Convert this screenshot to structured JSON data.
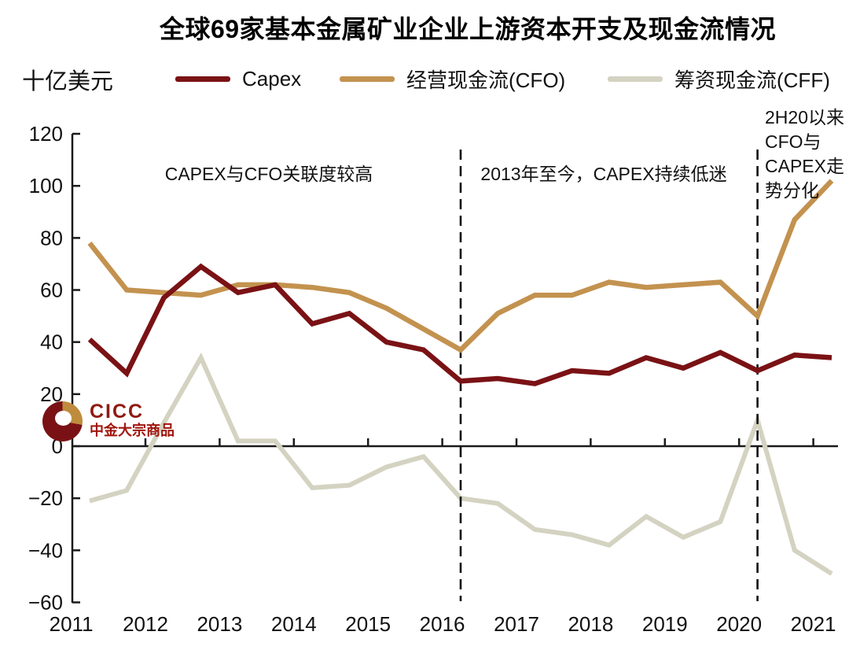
{
  "logo": {
    "name": "CICC",
    "subtitle": "中金大宗商品"
  },
  "chart_data": {
    "type": "line",
    "title": "全球69家基本金属矿业企业上游资本开支及现金流情况",
    "ylabel": "十亿美元",
    "xlabel": "",
    "x_unit": "half-year",
    "categories": [
      "2011H1",
      "2011H2",
      "2012H1",
      "2012H2",
      "2013H1",
      "2013H2",
      "2014H1",
      "2014H2",
      "2015H1",
      "2015H2",
      "2016H1",
      "2016H2",
      "2017H1",
      "2017H2",
      "2018H1",
      "2018H2",
      "2019H1",
      "2019H2",
      "2020H1",
      "2020H2",
      "2021H1"
    ],
    "series": [
      {
        "name": "Capex",
        "color": "#7a1215",
        "values": [
          41,
          28,
          57,
          69,
          59,
          62,
          47,
          51,
          40,
          37,
          25,
          26,
          24,
          29,
          28,
          34,
          30,
          36,
          29,
          35,
          34
        ]
      },
      {
        "name": "经营现金流(CFO)",
        "color": "#c3924f",
        "values": [
          78,
          60,
          59,
          58,
          62,
          62,
          61,
          59,
          53,
          45,
          37,
          51,
          58,
          58,
          63,
          61,
          62,
          63,
          50,
          87,
          102
        ]
      },
      {
        "name": "筹资现金流(CFF)",
        "color": "#d4d3c2",
        "values": [
          -21,
          -17,
          9,
          34,
          2,
          2,
          -16,
          -15,
          -8,
          -4,
          -20,
          -22,
          -32,
          -34,
          -38,
          -27,
          -35,
          -29,
          10,
          -40,
          -49
        ]
      }
    ],
    "y_ticks": [
      120,
      100,
      80,
      60,
      40,
      20,
      0,
      -20,
      -40,
      -60
    ],
    "y_tick_labels": [
      "120",
      "100",
      "80",
      "60",
      "40",
      "20",
      "0",
      "−20",
      "−40",
      "−60"
    ],
    "x_tick_labels": [
      "2011",
      "2012",
      "2013",
      "2014",
      "2015",
      "2016",
      "2017",
      "2018",
      "2019",
      "2020",
      "2021"
    ],
    "ylim": [
      -60,
      120
    ],
    "grid": false,
    "legend_position": "top",
    "dashed_dividers": [
      {
        "at_category": "2016H1",
        "index": 10
      },
      {
        "at_category": "2020H1",
        "index": 18
      }
    ],
    "annotations": {
      "left": {
        "text": "CAPEX与CFO关联度较高"
      },
      "middle": {
        "text": "2013年至今，CAPEX持续低迷"
      },
      "right": {
        "lines": [
          "2H20以来",
          "CFO与",
          "CAPEX走",
          "势分化"
        ]
      }
    }
  }
}
